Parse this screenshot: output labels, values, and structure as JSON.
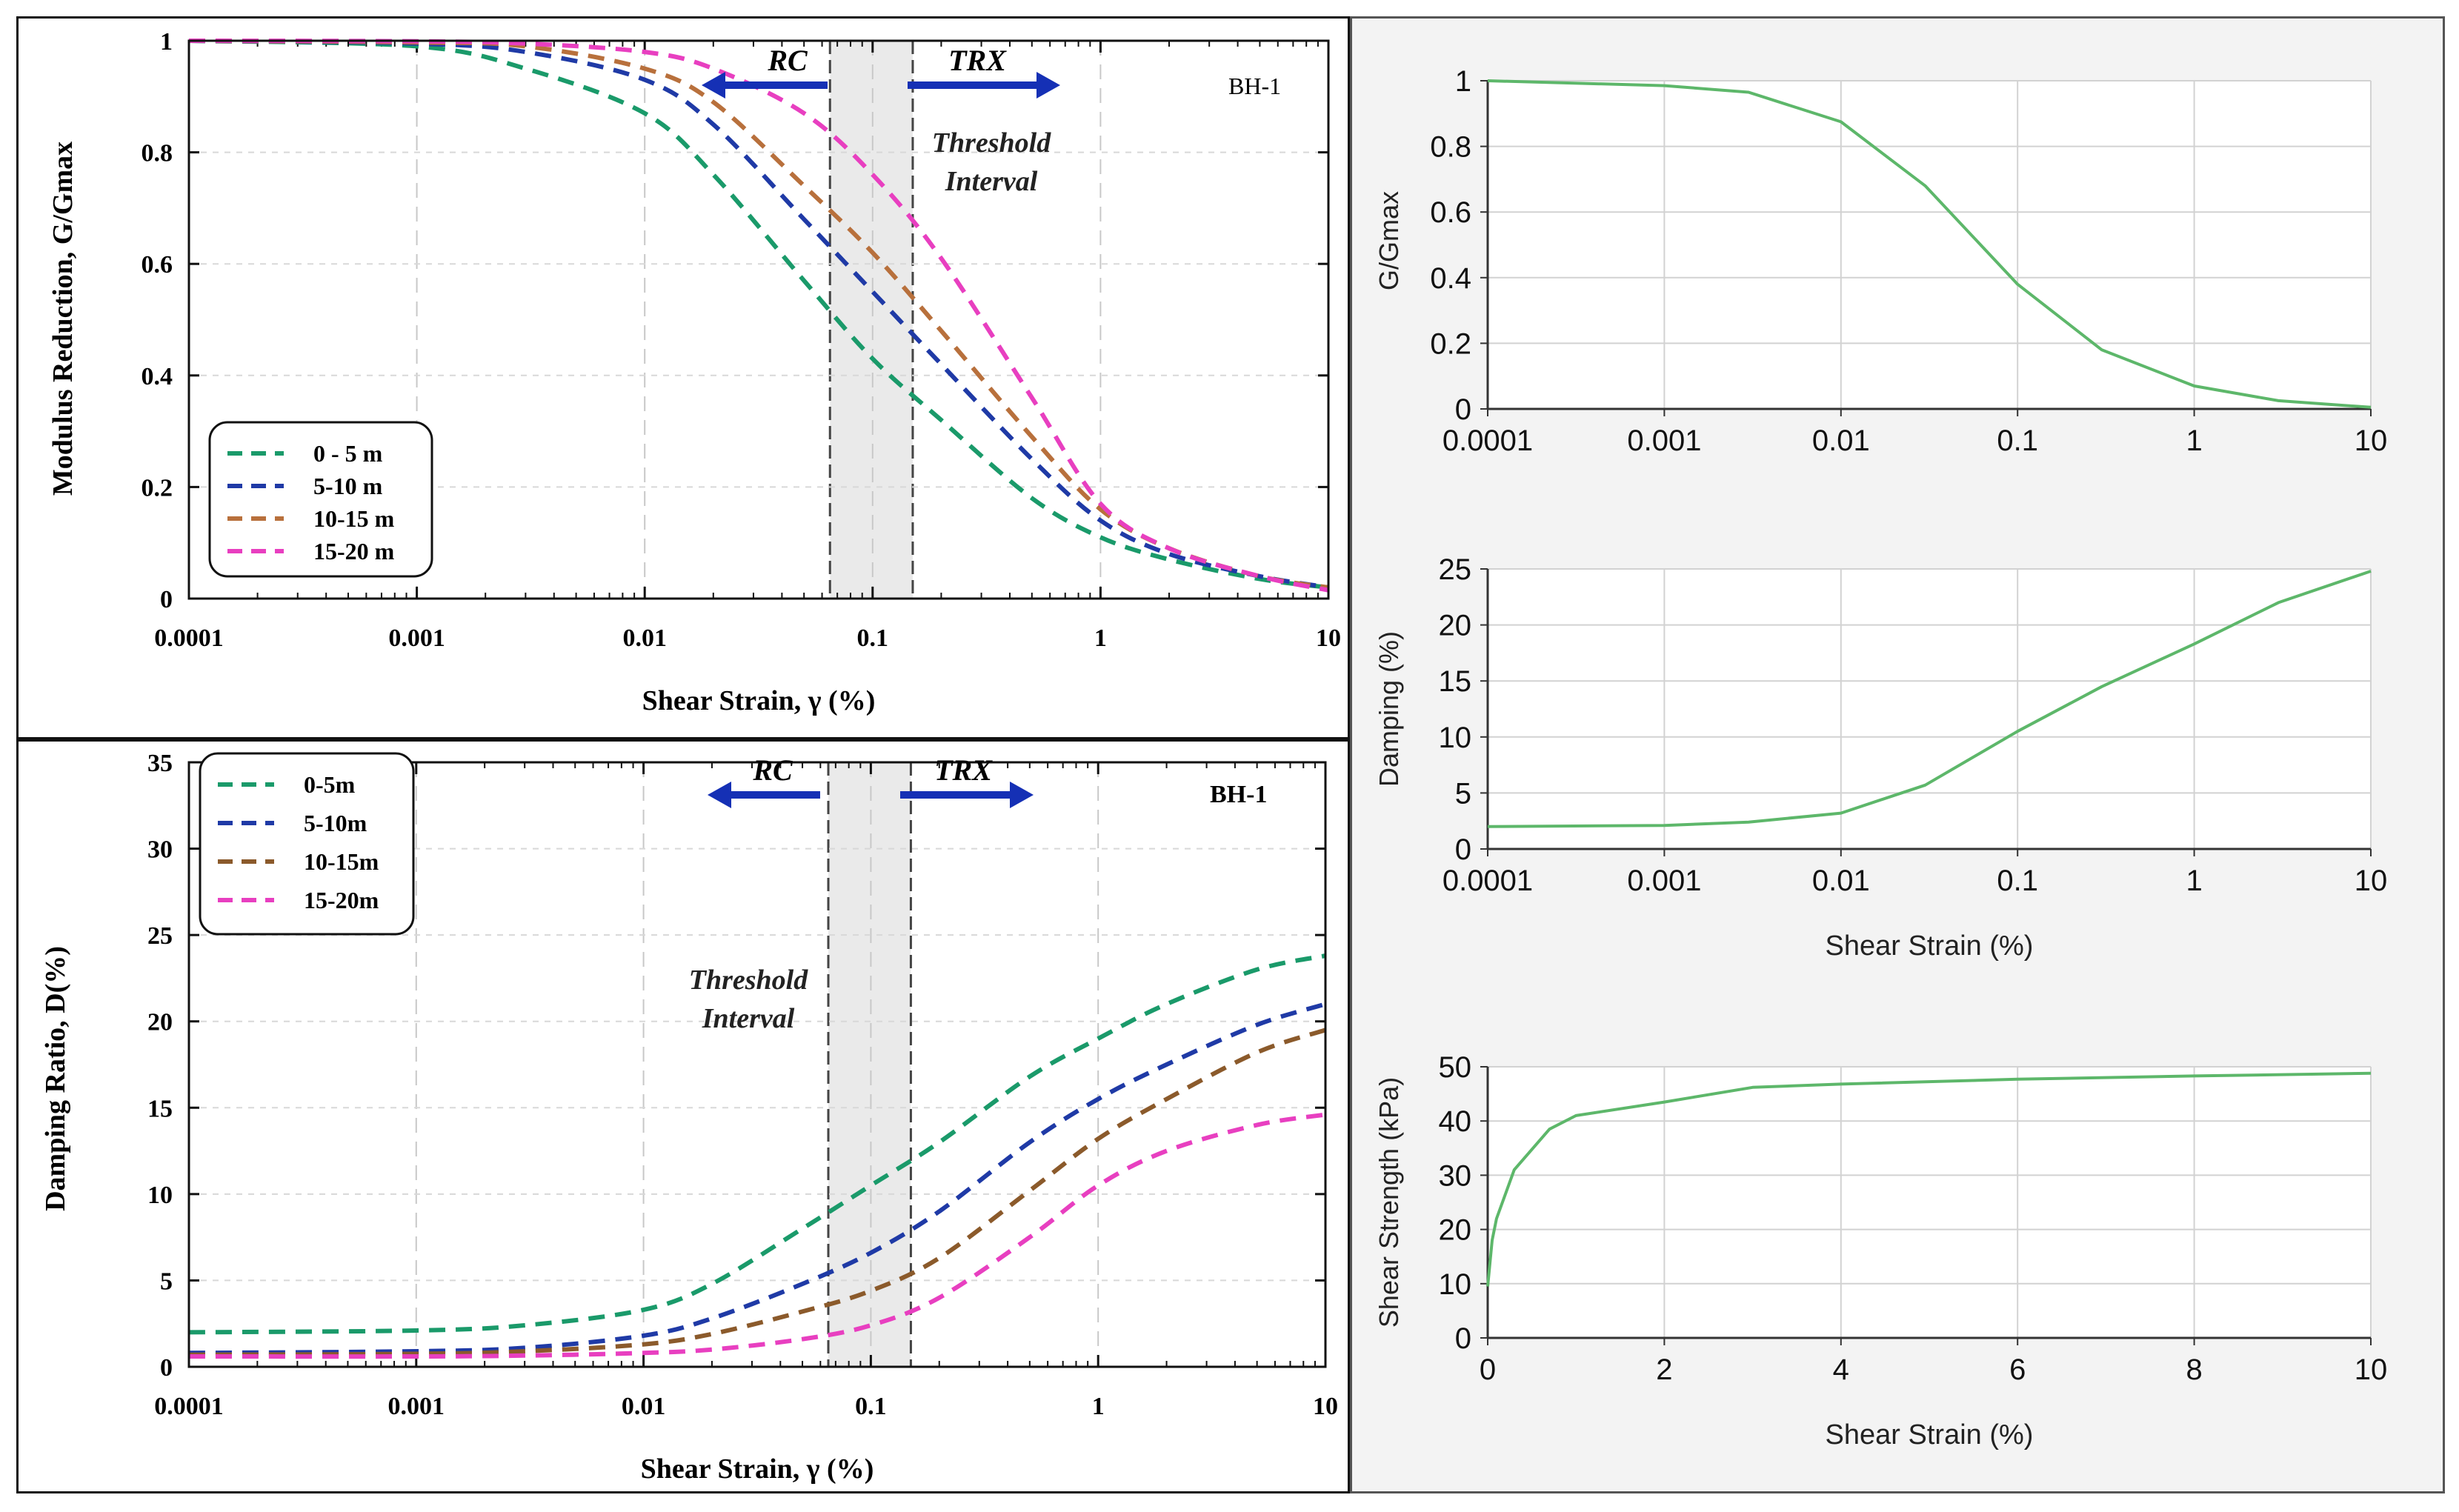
{
  "chart_data": [
    {
      "id": "modulus",
      "type": "line",
      "style": "dashed",
      "x_scale": "log",
      "xlim": [
        0.0001,
        10
      ],
      "ylim": [
        0,
        1
      ],
      "xticks": [
        "0.0001",
        "0.001",
        "0.01",
        "0.1",
        "1",
        "10"
      ],
      "yticks": [
        "0",
        "0.2",
        "0.4",
        "0.6",
        "0.8",
        "1"
      ],
      "xlabel": "Shear Strain, γ (%)",
      "ylabel": "Modulus Reduction, G/Gmax",
      "borehole": "BH-1",
      "legend_position": "bottom-left",
      "annotations": {
        "rc": "RC",
        "trx": "TRX",
        "threshold_line1": "Threshold",
        "threshold_line2": "Interval",
        "threshold_band": [
          0.065,
          0.15
        ]
      },
      "series": [
        {
          "name": "0 - 5 m",
          "color": "#1a9a6a",
          "x": [
            0.0001,
            0.001,
            0.003,
            0.01,
            0.02,
            0.05,
            0.1,
            0.2,
            0.5,
            1,
            2,
            5,
            10
          ],
          "y": [
            1.0,
            0.99,
            0.95,
            0.87,
            0.76,
            0.57,
            0.43,
            0.32,
            0.18,
            0.11,
            0.07,
            0.035,
            0.02
          ]
        },
        {
          "name": "5-10 m",
          "color": "#1f3aa6",
          "x": [
            0.0001,
            0.001,
            0.003,
            0.01,
            0.02,
            0.05,
            0.1,
            0.2,
            0.5,
            1,
            2,
            5,
            10
          ],
          "y": [
            1.0,
            0.995,
            0.98,
            0.93,
            0.85,
            0.68,
            0.55,
            0.42,
            0.25,
            0.14,
            0.08,
            0.04,
            0.02
          ]
        },
        {
          "name": "10-15 m",
          "color": "#b8703c",
          "x": [
            0.0001,
            0.001,
            0.003,
            0.01,
            0.02,
            0.05,
            0.1,
            0.2,
            0.5,
            1,
            2,
            5,
            10
          ],
          "y": [
            1.0,
            0.997,
            0.99,
            0.95,
            0.89,
            0.74,
            0.62,
            0.48,
            0.29,
            0.16,
            0.09,
            0.04,
            0.02
          ]
        },
        {
          "name": "15-20 m",
          "color": "#e83fc0",
          "x": [
            0.0001,
            0.001,
            0.003,
            0.01,
            0.02,
            0.05,
            0.1,
            0.2,
            0.5,
            1,
            2,
            5,
            10
          ],
          "y": [
            1.0,
            0.999,
            0.995,
            0.98,
            0.95,
            0.87,
            0.76,
            0.61,
            0.36,
            0.17,
            0.09,
            0.04,
            0.015
          ]
        }
      ]
    },
    {
      "id": "damping",
      "type": "line",
      "style": "dashed",
      "x_scale": "log",
      "xlim": [
        0.0001,
        10
      ],
      "ylim": [
        0,
        35
      ],
      "xticks": [
        "0.0001",
        "0.001",
        "0.01",
        "0.1",
        "1",
        "10"
      ],
      "yticks": [
        "0",
        "5",
        "10",
        "15",
        "20",
        "25",
        "30",
        "35"
      ],
      "xlabel": "Shear Strain, γ (%)",
      "ylabel": "Damping Ratio, D(%)",
      "borehole": "BH-1",
      "legend_position": "top-left",
      "annotations": {
        "rc": "RC",
        "trx": "TRX",
        "threshold_line1": "Threshold",
        "threshold_line2": "Interval",
        "threshold_band": [
          0.065,
          0.15
        ]
      },
      "series": [
        {
          "name": "0-5m",
          "color": "#1a9a6a",
          "x": [
            0.0001,
            0.001,
            0.003,
            0.01,
            0.02,
            0.05,
            0.1,
            0.2,
            0.5,
            1,
            2,
            5,
            10
          ],
          "y": [
            2.0,
            2.1,
            2.4,
            3.3,
            4.8,
            8.0,
            10.5,
            13.0,
            16.8,
            19.0,
            21.0,
            23.0,
            23.8
          ]
        },
        {
          "name": "5-10m",
          "color": "#1f3aa6",
          "x": [
            0.0001,
            0.001,
            0.003,
            0.01,
            0.02,
            0.05,
            0.1,
            0.2,
            0.5,
            1,
            2,
            5,
            10
          ],
          "y": [
            0.8,
            0.9,
            1.1,
            1.8,
            2.8,
            4.8,
            6.6,
            9.0,
            13.0,
            15.5,
            17.5,
            19.8,
            21.0
          ]
        },
        {
          "name": "10-15m",
          "color": "#8b5a2b",
          "x": [
            0.0001,
            0.001,
            0.003,
            0.01,
            0.02,
            0.05,
            0.1,
            0.2,
            0.5,
            1,
            2,
            5,
            10
          ],
          "y": [
            0.7,
            0.75,
            0.9,
            1.3,
            1.9,
            3.2,
            4.4,
            6.3,
            10.2,
            13.2,
            15.5,
            18.2,
            19.5
          ]
        },
        {
          "name": "15-20m",
          "color": "#e83fc0",
          "x": [
            0.0001,
            0.001,
            0.003,
            0.01,
            0.02,
            0.05,
            0.1,
            0.2,
            0.5,
            1,
            2,
            5,
            10
          ],
          "y": [
            0.6,
            0.6,
            0.65,
            0.8,
            1.0,
            1.6,
            2.4,
            4.0,
            7.5,
            10.5,
            12.5,
            14.0,
            14.6
          ]
        }
      ]
    },
    {
      "id": "ggmax",
      "type": "line",
      "x_scale": "log",
      "xlim": [
        0.0001,
        10
      ],
      "ylim": [
        0,
        1
      ],
      "xticks": [
        "0.0001",
        "0.001",
        "0.01",
        "0.1",
        "1",
        "10"
      ],
      "yticks": [
        "0",
        "0.2",
        "0.4",
        "0.6",
        "0.8",
        "1"
      ],
      "xlabel": "",
      "ylabel": "G/Gmax",
      "series": [
        {
          "name": "G/Gmax",
          "color": "#5db76a",
          "x": [
            0.0001,
            0.001,
            0.003,
            0.01,
            0.03,
            0.1,
            0.3,
            1,
            3,
            10
          ],
          "y": [
            1.0,
            0.985,
            0.965,
            0.875,
            0.68,
            0.38,
            0.18,
            0.07,
            0.025,
            0.005
          ]
        }
      ]
    },
    {
      "id": "damping_pct",
      "type": "line",
      "x_scale": "log",
      "xlim": [
        0.0001,
        10
      ],
      "ylim": [
        0,
        25
      ],
      "xticks": [
        "0.0001",
        "0.001",
        "0.01",
        "0.1",
        "1",
        "10"
      ],
      "yticks": [
        "0",
        "5",
        "10",
        "15",
        "20",
        "25"
      ],
      "xlabel": "Shear Strain (%)",
      "ylabel": "Damping (%)",
      "series": [
        {
          "name": "Damping",
          "color": "#5db76a",
          "x": [
            0.0001,
            0.001,
            0.003,
            0.01,
            0.03,
            0.1,
            0.3,
            1,
            3,
            10
          ],
          "y": [
            2.0,
            2.1,
            2.4,
            3.2,
            5.7,
            10.5,
            14.5,
            18.3,
            22.0,
            24.8
          ]
        }
      ]
    },
    {
      "id": "strength",
      "type": "line",
      "x_scale": "linear",
      "xlim": [
        0,
        10
      ],
      "ylim": [
        0,
        50
      ],
      "xticks": [
        "0",
        "2",
        "4",
        "6",
        "8",
        "10"
      ],
      "yticks": [
        "0",
        "10",
        "20",
        "30",
        "40",
        "50"
      ],
      "xlabel": "Shear Strain (%)",
      "ylabel": "Shear Strength (kPa)",
      "series": [
        {
          "name": "Shear Strength",
          "color": "#5db76a",
          "x": [
            0,
            0.05,
            0.1,
            0.3,
            0.7,
            1,
            2,
            3,
            4,
            6,
            8,
            10
          ],
          "y": [
            9.5,
            18,
            22,
            31,
            38.5,
            41,
            43.5,
            46.2,
            46.8,
            47.7,
            48.3,
            48.8
          ]
        }
      ]
    }
  ]
}
